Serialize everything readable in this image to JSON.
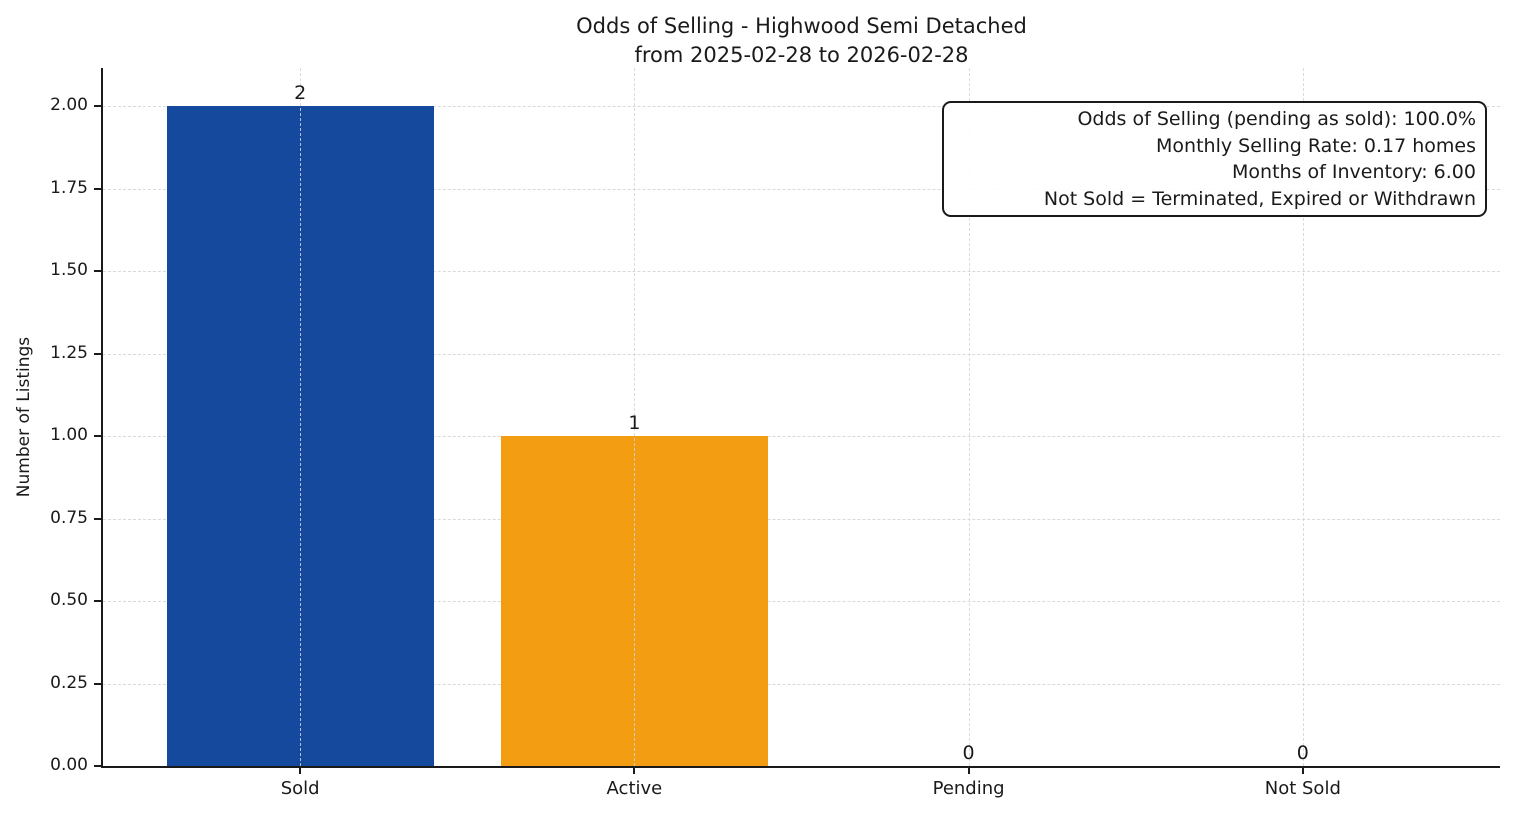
{
  "title": {
    "line1": "Odds of Selling - Highwood Semi Detached",
    "line2": "from 2025-02-28 to 2026-02-28"
  },
  "chart_data": {
    "type": "bar",
    "title": "Odds of Selling - Highwood Semi Detached\nfrom 2025-02-28 to 2026-02-28",
    "categories": [
      "Sold",
      "Active",
      "Pending",
      "Not Sold"
    ],
    "values": [
      2,
      1,
      0,
      0
    ],
    "value_labels": [
      "2",
      "1",
      "0",
      "0"
    ],
    "bar_colors": [
      "#14499d",
      "#f29d12",
      null,
      null
    ],
    "xlabel": "",
    "ylabel": "Number of Listings",
    "ylim": [
      0,
      2.12
    ],
    "ytick_labels": [
      "0.00",
      "0.25",
      "0.50",
      "0.75",
      "1.00",
      "1.25",
      "1.50",
      "1.75",
      "2.00"
    ],
    "grid": {
      "horizontal": true,
      "vertical": true,
      "style": "dashed",
      "color": "#d9d9d9"
    },
    "legend": null
  },
  "annotation_box": {
    "lines": [
      "Odds of Selling (pending as sold): 100.0%",
      "Monthly Selling Rate: 0.17 homes",
      "Months of Inventory: 6.00",
      "Not Sold = Terminated, Expired or Withdrawn"
    ]
  },
  "colors": {
    "sold_bar": "#14499d",
    "active_bar": "#f29d12",
    "text": "#1a1a1a",
    "grid": "#d9d9d9",
    "spine": "#1a1a1a",
    "background": "#ffffff"
  }
}
